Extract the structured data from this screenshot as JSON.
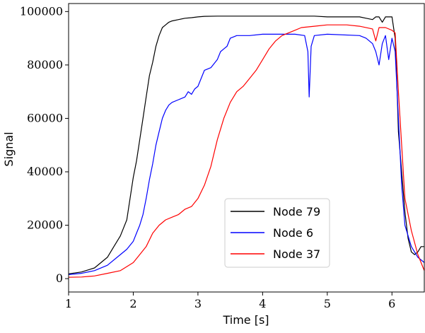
{
  "chart_data": {
    "type": "line",
    "xlabel": "Time [s]",
    "ylabel": "Signal",
    "xlim": [
      1,
      6.5
    ],
    "ylim": [
      -5000,
      103000
    ],
    "xticks": [
      1,
      2,
      3,
      4,
      5,
      6
    ],
    "yticks": [
      0,
      20000,
      40000,
      60000,
      80000,
      100000
    ],
    "legend_position": "lower-center",
    "grid": false,
    "series": [
      {
        "name": "Node 79",
        "color": "#000000",
        "x": [
          1.0,
          1.2,
          1.4,
          1.6,
          1.7,
          1.8,
          1.9,
          1.95,
          2.0,
          2.05,
          2.1,
          2.15,
          2.2,
          2.25,
          2.3,
          2.35,
          2.4,
          2.45,
          2.5,
          2.55,
          2.6,
          2.7,
          2.8,
          2.9,
          3.0,
          3.1,
          3.3,
          3.5,
          4.0,
          4.5,
          4.8,
          5.0,
          5.5,
          5.6,
          5.7,
          5.75,
          5.8,
          5.85,
          5.9,
          6.0,
          6.05,
          6.08,
          6.1,
          6.15,
          6.2,
          6.25,
          6.3,
          6.35,
          6.4,
          6.45,
          6.5
        ],
        "values": [
          1800,
          2500,
          4000,
          8000,
          12000,
          16000,
          22000,
          30000,
          38000,
          44000,
          52000,
          60000,
          68000,
          76000,
          81000,
          87000,
          91000,
          94000,
          95000,
          96000,
          96500,
          97000,
          97500,
          97700,
          98000,
          98200,
          98300,
          98300,
          98300,
          98300,
          98300,
          98000,
          98000,
          97500,
          97000,
          98000,
          98000,
          96000,
          98000,
          98000,
          90000,
          70000,
          55000,
          40000,
          25000,
          15000,
          10000,
          9000,
          10000,
          12000,
          12000
        ]
      },
      {
        "name": "Node 6",
        "color": "#0000ff",
        "x": [
          1.0,
          1.2,
          1.4,
          1.6,
          1.8,
          1.9,
          2.0,
          2.05,
          2.1,
          2.15,
          2.2,
          2.25,
          2.3,
          2.35,
          2.4,
          2.45,
          2.5,
          2.55,
          2.6,
          2.7,
          2.8,
          2.85,
          2.9,
          2.95,
          3.0,
          3.1,
          3.2,
          3.3,
          3.35,
          3.4,
          3.45,
          3.5,
          3.6,
          3.7,
          3.8,
          4.0,
          4.5,
          4.65,
          4.7,
          4.72,
          4.75,
          4.8,
          5.0,
          5.5,
          5.6,
          5.7,
          5.75,
          5.8,
          5.85,
          5.9,
          5.95,
          6.0,
          6.05,
          6.1,
          6.15,
          6.2,
          6.3,
          6.4,
          6.5
        ],
        "values": [
          1500,
          2000,
          3000,
          5000,
          9000,
          11000,
          14000,
          17000,
          20000,
          24000,
          30000,
          37000,
          43000,
          50000,
          55000,
          60000,
          63000,
          65000,
          66000,
          67000,
          68000,
          70000,
          69000,
          71000,
          72000,
          78000,
          79000,
          82000,
          85000,
          86000,
          87000,
          90000,
          91000,
          91000,
          91000,
          91500,
          91500,
          91000,
          85000,
          68000,
          87000,
          91000,
          91500,
          91000,
          90000,
          88000,
          85000,
          80000,
          88000,
          91000,
          82000,
          90000,
          85000,
          60000,
          35000,
          20000,
          12000,
          8000,
          6000
        ]
      },
      {
        "name": "Node 37",
        "color": "#ff0000",
        "x": [
          1.0,
          1.2,
          1.4,
          1.6,
          1.8,
          2.0,
          2.1,
          2.2,
          2.3,
          2.4,
          2.5,
          2.6,
          2.7,
          2.8,
          2.9,
          3.0,
          3.1,
          3.2,
          3.3,
          3.4,
          3.5,
          3.6,
          3.7,
          3.8,
          3.9,
          4.0,
          4.1,
          4.2,
          4.3,
          4.4,
          4.5,
          4.6,
          4.8,
          5.0,
          5.3,
          5.5,
          5.7,
          5.75,
          5.8,
          5.9,
          6.0,
          6.05,
          6.1,
          6.15,
          6.2,
          6.3,
          6.4,
          6.5
        ],
        "values": [
          500,
          600,
          1000,
          2000,
          3000,
          6000,
          9000,
          12000,
          17000,
          20000,
          22000,
          23000,
          24000,
          26000,
          27000,
          30000,
          35000,
          42000,
          52000,
          60000,
          66000,
          70000,
          72000,
          75000,
          78000,
          82000,
          86000,
          89000,
          91000,
          92000,
          93000,
          94000,
          94500,
          95000,
          95000,
          94500,
          93500,
          89000,
          94000,
          94000,
          93000,
          92000,
          70000,
          50000,
          30000,
          18000,
          9000,
          3000
        ]
      }
    ]
  }
}
